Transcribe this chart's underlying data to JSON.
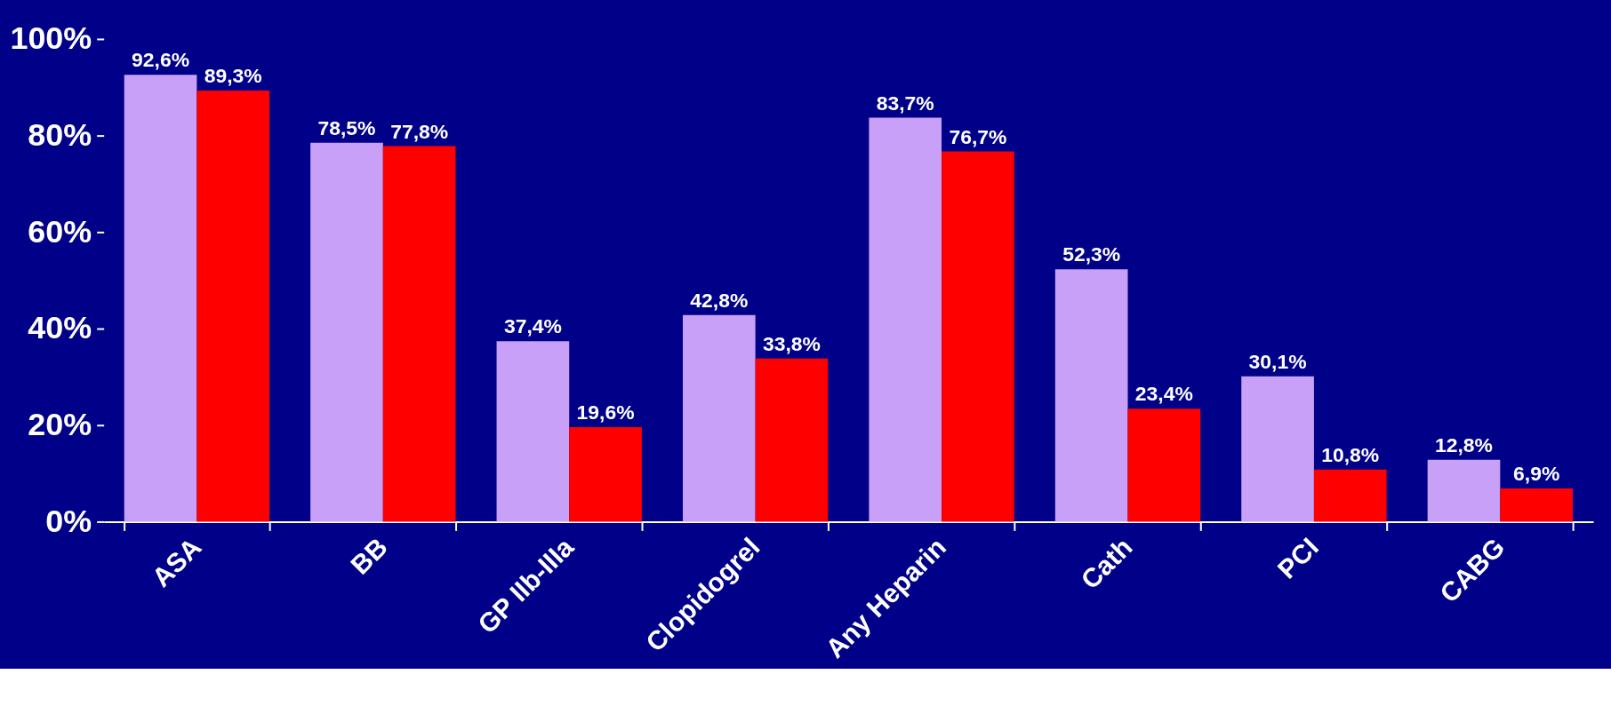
{
  "chart_data": {
    "type": "bar",
    "categories": [
      "ASA",
      "BB",
      "GP IIb-IIIa",
      "Clopidogrel",
      "Any Heparin",
      "Cath",
      "PCI",
      "CABG"
    ],
    "series": [
      {
        "color": "#c8a0f8",
        "values": [
          92.6,
          78.5,
          37.4,
          42.8,
          83.7,
          52.3,
          30.1,
          12.8
        ],
        "value_labels": [
          "92,6%",
          "78,5%",
          "37,4%",
          "42,8%",
          "83,7%",
          "52,3%",
          "30,1%",
          "12,8%"
        ]
      },
      {
        "color": "#ff0000",
        "values": [
          89.3,
          77.8,
          19.6,
          33.8,
          76.7,
          23.4,
          10.8,
          6.9
        ],
        "value_labels": [
          "89,3%",
          "77,8%",
          "19,6%",
          "33,8%",
          "76,7%",
          "23,4%",
          "10,8%",
          "6,9%"
        ]
      }
    ],
    "ylim": [
      0,
      100
    ],
    "yticks": [
      {
        "value": 0,
        "label": "0%"
      },
      {
        "value": 20,
        "label": "20%"
      },
      {
        "value": 40,
        "label": "40%"
      },
      {
        "value": 60,
        "label": "60%"
      },
      {
        "value": 80,
        "label": "80%"
      },
      {
        "value": 100,
        "label": "100%"
      }
    ],
    "grid": false,
    "legend": false
  }
}
